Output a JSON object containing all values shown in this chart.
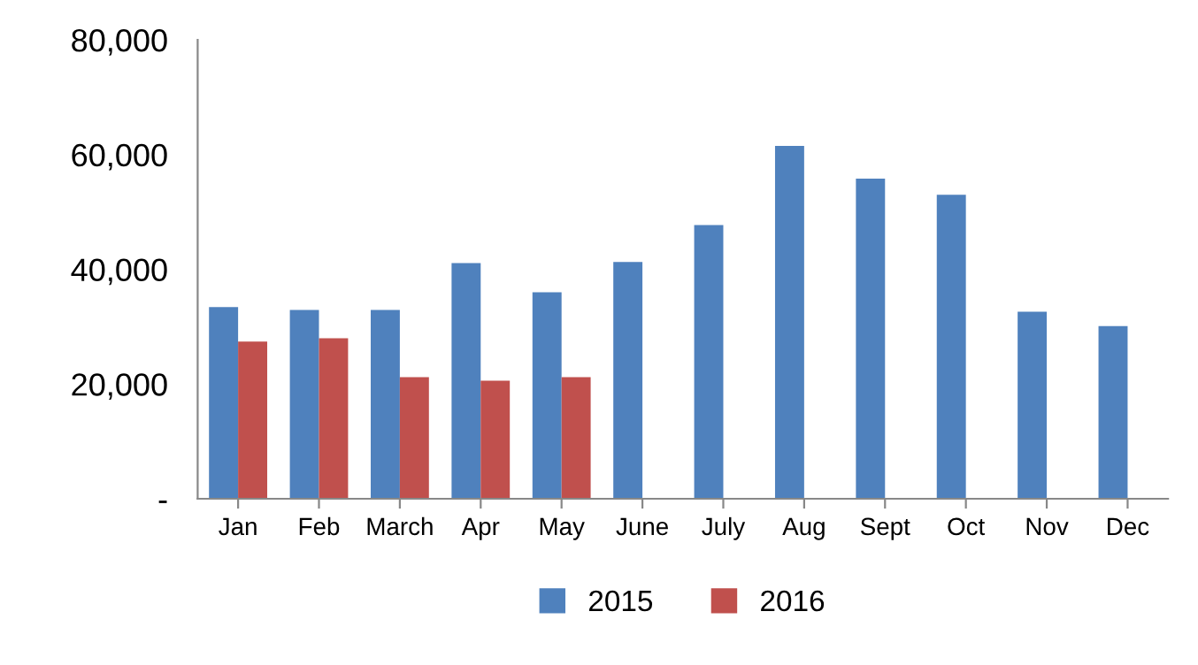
{
  "chart_data": {
    "type": "bar",
    "categories": [
      "Jan",
      "Feb",
      "March",
      "Apr",
      "May",
      "June",
      "July",
      "Aug",
      "Sept",
      "Oct",
      "Nov",
      "Dec"
    ],
    "series": [
      {
        "name": "2015",
        "color": "#4f81bd",
        "values": [
          33400,
          32900,
          32900,
          41100,
          36000,
          41300,
          47700,
          61500,
          55800,
          53000,
          32600,
          30100
        ]
      },
      {
        "name": "2016",
        "color": "#c0504d",
        "values": [
          27400,
          28000,
          21200,
          20600,
          21200,
          null,
          null,
          null,
          null,
          null,
          null,
          null
        ]
      }
    ],
    "ylim": [
      0,
      80000
    ],
    "yticks": [
      {
        "value": 0,
        "label": "-"
      },
      {
        "value": 20000,
        "label": "20,000"
      },
      {
        "value": 40000,
        "label": "40,000"
      },
      {
        "value": 60000,
        "label": "60,000"
      },
      {
        "value": 80000,
        "label": "80,000"
      }
    ],
    "grid": false,
    "legend": "bottom"
  }
}
